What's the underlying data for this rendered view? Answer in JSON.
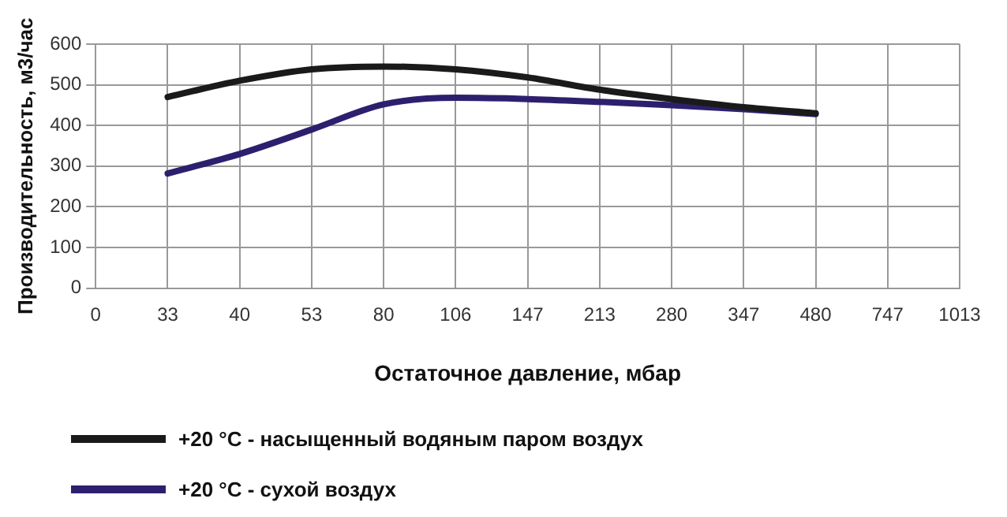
{
  "chart_data": {
    "type": "line",
    "xlabel": "Остаточное давление, мбар",
    "ylabel": "Производительность, м3/час",
    "categories": [
      "0",
      "33",
      "40",
      "53",
      "80",
      "106",
      "147",
      "213",
      "280",
      "347",
      "480",
      "747",
      "1013"
    ],
    "series": [
      {
        "name": "+20 °C - насыщенный водяным паром воздух",
        "color": "#1a1a1a",
        "values": [
          null,
          470,
          510,
          538,
          545,
          538,
          518,
          488,
          465,
          445,
          430,
          null,
          null
        ]
      },
      {
        "name": "+20 °C - сухой воздух",
        "color": "#2e1f6e",
        "values": [
          null,
          282,
          330,
          390,
          452,
          468,
          465,
          458,
          450,
          440,
          428,
          null,
          null
        ]
      }
    ],
    "ylim": [
      0,
      600
    ],
    "yticks": [
      0,
      100,
      200,
      300,
      400,
      500,
      600
    ],
    "grid": true,
    "legend": "bottom",
    "marker": "none",
    "line_style": "solid"
  }
}
